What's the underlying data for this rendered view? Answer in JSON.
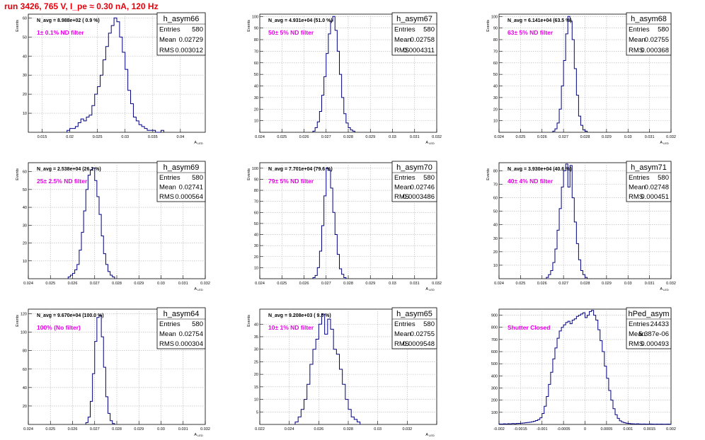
{
  "page_title": "run 3426,   765 V, I_pe ≈ 0.30 nA, 120 Hz",
  "colors": {
    "title": "#e8000b",
    "filter_label": "#e600e6",
    "histogram": "#000080",
    "grid": "#b4b4b4"
  },
  "stats_labels": {
    "entries": "Entries",
    "mean": "Mean",
    "rms": "RMS"
  },
  "chart_data": [
    {
      "type": "histogram",
      "name": "h_asym66",
      "ylabel": "Events",
      "xlabel": "A",
      "xlabel_sub": "LED",
      "navg": "N_avg = 8.988e+02 ( 0.9 %)",
      "filter": "1± 0.1% ND filter",
      "entries": "580",
      "mean": "0.02729",
      "rms": "0.003012",
      "xlim": [
        0.0125,
        0.0445
      ],
      "ylim": [
        0,
        62
      ],
      "xticks": [
        0.015,
        0.02,
        0.025,
        0.03,
        0.035,
        0.04
      ],
      "xtick_labels": [
        "0.015",
        "0.02",
        "0.025",
        "0.03",
        "0.035",
        "0.04"
      ],
      "yticks": [
        10,
        20,
        30,
        40,
        50,
        60
      ],
      "ytick_labels": [
        "10",
        "20",
        "30",
        "40",
        "50",
        "60"
      ],
      "bins": {
        "start": 0.0195,
        "width": 0.0005,
        "counts": [
          1,
          2,
          2,
          3,
          5,
          7,
          6,
          8,
          9,
          14,
          20,
          24,
          30,
          38,
          45,
          52,
          56,
          60,
          58,
          50,
          42,
          33,
          22,
          15,
          8,
          6,
          4,
          3,
          2,
          1,
          1,
          1,
          0,
          0,
          1
        ]
      }
    },
    {
      "type": "histogram",
      "name": "h_asym67",
      "ylabel": "Events",
      "xlabel": "A",
      "xlabel_sub": "LED",
      "navg": "N_avg = 4.931e+04 (51.0 %)",
      "filter": "50± 5% ND filter",
      "entries": "580",
      "mean": "0.02758",
      "rms": "0.0004311",
      "xlim": [
        0.024,
        0.032
      ],
      "ylim": [
        0,
        102
      ],
      "xticks": [
        0.024,
        0.025,
        0.026,
        0.027,
        0.028,
        0.029,
        0.03,
        0.031,
        0.032
      ],
      "xtick_labels": [
        "0.024",
        "0.025",
        "0.026",
        "0.027",
        "0.028",
        "0.029",
        "0.03",
        "0.031",
        "0.032"
      ],
      "yticks": [
        10,
        20,
        30,
        40,
        50,
        60,
        70,
        80,
        90,
        100
      ],
      "ytick_labels": [
        "10",
        "20",
        "30",
        "40",
        "50",
        "60",
        "70",
        "80",
        "90",
        "100"
      ],
      "bins": {
        "start": 0.0264,
        "width": 0.0001,
        "counts": [
          1,
          4,
          9,
          18,
          32,
          48,
          68,
          85,
          96,
          100,
          88,
          70,
          50,
          30,
          16,
          8,
          4,
          2,
          1
        ]
      }
    },
    {
      "type": "histogram",
      "name": "h_asym68",
      "ylabel": "Events",
      "xlabel": "A",
      "xlabel_sub": "LED",
      "navg": "N_avg = 6.141e+04 (63.5 %)",
      "filter": "63± 5% ND filter",
      "entries": "580",
      "mean": "0.02755",
      "rms": "0.000368",
      "xlim": [
        0.024,
        0.032
      ],
      "ylim": [
        0,
        102
      ],
      "xticks": [
        0.024,
        0.025,
        0.026,
        0.027,
        0.028,
        0.029,
        0.03,
        0.031,
        0.032
      ],
      "xtick_labels": [
        "0.024",
        "0.025",
        "0.026",
        "0.027",
        "0.028",
        "0.029",
        "0.03",
        "0.031",
        "0.032"
      ],
      "yticks": [
        10,
        20,
        30,
        40,
        50,
        60,
        70,
        80,
        90,
        100
      ],
      "ytick_labels": [
        "10",
        "20",
        "30",
        "40",
        "50",
        "60",
        "70",
        "80",
        "90",
        "100"
      ],
      "bins": {
        "start": 0.0265,
        "width": 0.0001,
        "counts": [
          1,
          3,
          8,
          20,
          40,
          62,
          85,
          100,
          96,
          80,
          55,
          32,
          14,
          6,
          2,
          1
        ]
      }
    },
    {
      "type": "histogram",
      "name": "h_asym69",
      "ylabel": "Events",
      "xlabel": "A",
      "xlabel_sub": "LED",
      "navg": "N_avg = 2.538e+04 (26.2 %)",
      "filter": "25± 2.5% ND filter",
      "entries": "580",
      "mean": "0.02741",
      "rms": "0.000564",
      "xlim": [
        0.024,
        0.032
      ],
      "ylim": [
        0,
        65
      ],
      "xticks": [
        0.024,
        0.025,
        0.026,
        0.027,
        0.028,
        0.029,
        0.03,
        0.031,
        0.032
      ],
      "xtick_labels": [
        "0.024",
        "0.025",
        "0.026",
        "0.027",
        "0.028",
        "0.029",
        "0.03",
        "0.031",
        "0.032"
      ],
      "yticks": [
        10,
        20,
        30,
        40,
        50,
        60
      ],
      "ytick_labels": [
        "10",
        "20",
        "30",
        "40",
        "50",
        "60"
      ],
      "bins": {
        "start": 0.0258,
        "width": 0.0001,
        "counts": [
          1,
          2,
          3,
          5,
          8,
          16,
          26,
          38,
          50,
          58,
          61,
          62,
          55,
          46,
          36,
          24,
          14,
          8,
          4,
          2,
          1
        ]
      }
    },
    {
      "type": "histogram",
      "name": "h_asym70",
      "ylabel": "Events",
      "xlabel": "A",
      "xlabel_sub": "LED",
      "navg": "N_avg = 7.701e+04 (79.6 %)",
      "filter": "79± 5% ND filter",
      "entries": "580",
      "mean": "0.02746",
      "rms": "0.0003486",
      "xlim": [
        0.024,
        0.032
      ],
      "ylim": [
        0,
        105
      ],
      "xticks": [
        0.024,
        0.025,
        0.026,
        0.027,
        0.028,
        0.029,
        0.03,
        0.031,
        0.032
      ],
      "xtick_labels": [
        "0.024",
        "0.025",
        "0.026",
        "0.027",
        "0.028",
        "0.029",
        "0.03",
        "0.031",
        "0.032"
      ],
      "yticks": [
        10,
        20,
        30,
        40,
        50,
        60,
        70,
        80,
        90,
        100
      ],
      "ytick_labels": [
        "10",
        "20",
        "30",
        "40",
        "50",
        "60",
        "70",
        "80",
        "90",
        "100"
      ],
      "bins": {
        "start": 0.0264,
        "width": 0.0001,
        "counts": [
          1,
          3,
          10,
          25,
          48,
          75,
          100,
          98,
          82,
          60,
          40,
          22,
          9,
          4,
          1
        ]
      }
    },
    {
      "type": "histogram",
      "name": "h_asym71",
      "ylabel": "Events",
      "xlabel": "A",
      "xlabel_sub": "LED",
      "navg": "N_avg = 3.930e+04 (40.6 %)",
      "filter": "40± 4% ND filter",
      "entries": "580",
      "mean": "0.02748",
      "rms": "0.000451",
      "xlim": [
        0.024,
        0.032
      ],
      "ylim": [
        0,
        86
      ],
      "xticks": [
        0.024,
        0.025,
        0.026,
        0.027,
        0.028,
        0.029,
        0.03,
        0.031,
        0.032
      ],
      "xtick_labels": [
        "0.024",
        "0.025",
        "0.026",
        "0.027",
        "0.028",
        "0.029",
        "0.03",
        "0.031",
        "0.032"
      ],
      "yticks": [
        10,
        20,
        30,
        40,
        50,
        60,
        70,
        80
      ],
      "ytick_labels": [
        "10",
        "20",
        "30",
        "40",
        "50",
        "60",
        "70",
        "80"
      ],
      "bins": {
        "start": 0.0262,
        "width": 0.0001,
        "counts": [
          1,
          3,
          6,
          12,
          22,
          36,
          52,
          68,
          80,
          85,
          68,
          84,
          60,
          42,
          26,
          14,
          6,
          3,
          1
        ]
      }
    },
    {
      "type": "histogram",
      "name": "h_asym64",
      "ylabel": "Events",
      "xlabel": "A",
      "xlabel_sub": "LED",
      "navg": "N_avg = 9.670e+04 (100.0 %)",
      "filter": "100% (No filter)",
      "entries": "580",
      "mean": "0.02754",
      "rms": "0.000304",
      "xlim": [
        0.024,
        0.032
      ],
      "ylim": [
        0,
        125
      ],
      "xticks": [
        0.024,
        0.025,
        0.026,
        0.027,
        0.028,
        0.029,
        0.03,
        0.031,
        0.032
      ],
      "xtick_labels": [
        "0.024",
        "0.025",
        "0.026",
        "0.027",
        "0.028",
        "0.029",
        "0.03",
        "0.031",
        "0.032"
      ],
      "yticks": [
        20,
        40,
        60,
        80,
        100,
        120
      ],
      "ytick_labels": [
        "20",
        "40",
        "60",
        "80",
        "100",
        "120"
      ],
      "bins": {
        "start": 0.0266,
        "width": 0.0001,
        "counts": [
          2,
          8,
          25,
          55,
          90,
          116,
          118,
          95,
          62,
          30,
          12,
          4,
          1
        ]
      }
    },
    {
      "type": "histogram",
      "name": "h_asym65",
      "ylabel": "Events",
      "xlabel": "A",
      "xlabel_sub": "LED",
      "navg": "N_avg = 9.208e+03 ( 9.5 %)",
      "filter": "10± 1% ND filter",
      "entries": "580",
      "mean": "0.02755",
      "rms": "0.0009548",
      "xlim": [
        0.022,
        0.034
      ],
      "ylim": [
        0,
        46
      ],
      "xticks": [
        0.022,
        0.024,
        0.026,
        0.028,
        0.03,
        0.032,
        0.034
      ],
      "xtick_labels": [
        "0.022",
        "0.024",
        "0.026",
        "0.028",
        "0.03",
        "0.032",
        ""
      ],
      "yticks": [
        5,
        10,
        15,
        20,
        25,
        30,
        35,
        40
      ],
      "ytick_labels": [
        "5",
        "10",
        "15",
        "20",
        "25",
        "30",
        "35",
        "40"
      ],
      "bins": {
        "start": 0.0244,
        "width": 0.0002,
        "counts": [
          1,
          3,
          6,
          10,
          16,
          24,
          30,
          34,
          40,
          44,
          36,
          42,
          38,
          30,
          28,
          22,
          16,
          10,
          6,
          3,
          2,
          1
        ]
      }
    },
    {
      "type": "histogram",
      "name": "hPed_asym",
      "ylabel": "",
      "xlabel": "",
      "xlabel_sub": "",
      "navg": "",
      "filter": "Shutter Closed",
      "entries": "24433",
      "mean": "5.387e-06",
      "rms": "0.000493",
      "xlim": [
        -0.002,
        0.002
      ],
      "ylim": [
        0,
        950
      ],
      "xticks": [
        -0.002,
        -0.0015,
        -0.001,
        -0.0005,
        0,
        0.0005,
        0.001,
        0.0015,
        0.002
      ],
      "xtick_labels": [
        "-0.002",
        "-0.0015",
        "-0.001",
        "-0.0005",
        "0",
        "0.0005",
        "0.001",
        "0.0015",
        "0.002"
      ],
      "yticks": [
        100,
        200,
        300,
        400,
        500,
        600,
        700,
        800,
        900
      ],
      "ytick_labels": [
        "100",
        "200",
        "300",
        "400",
        "500",
        "600",
        "700",
        "800",
        "900"
      ],
      "bins": {
        "start": -0.002,
        "width": 5e-05,
        "counts": [
          4,
          3,
          5,
          4,
          6,
          5,
          7,
          6,
          8,
          9,
          10,
          12,
          14,
          16,
          18,
          22,
          26,
          32,
          40,
          55,
          90,
          150,
          230,
          330,
          430,
          540,
          630,
          710,
          770,
          800,
          820,
          840,
          850,
          830,
          860,
          870,
          890,
          900,
          910,
          920,
          880,
          900,
          930,
          940,
          900,
          860,
          780,
          690,
          600,
          480,
          380,
          280,
          200,
          130,
          80,
          50,
          30,
          20,
          14,
          10,
          8,
          6,
          5,
          4,
          5,
          4,
          3,
          4,
          3,
          3,
          4,
          3,
          2,
          3,
          2,
          3,
          2,
          2,
          3,
          2
        ]
      }
    }
  ]
}
